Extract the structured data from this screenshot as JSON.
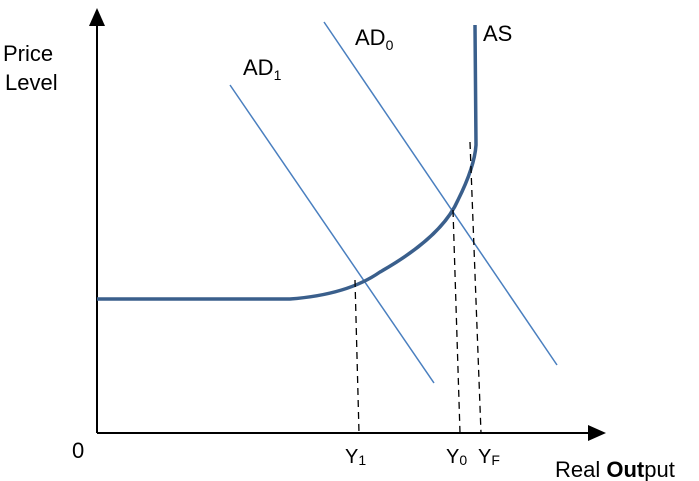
{
  "diagram": {
    "y_axis_label_line1": "Price",
    "y_axis_label_line2": "Level",
    "x_axis_label_part1": "Real ",
    "x_axis_label_part2": "Out",
    "x_axis_label_part3": "put",
    "origin_label": "0",
    "ad0_label": "AD",
    "ad0_sub": "0",
    "ad1_label": "AD",
    "ad1_sub": "1",
    "as_label": "AS",
    "y1_label": "Y",
    "y1_sub": "1",
    "y0_label": "Y",
    "y0_sub": "0",
    "yf_label": "Y",
    "yf_sub": "F"
  },
  "colors": {
    "axis": "#000000",
    "as_curve": "#3a5f8c",
    "ad_lines": "#4a7fbf",
    "dashed": "#000000",
    "text": "#000000"
  }
}
